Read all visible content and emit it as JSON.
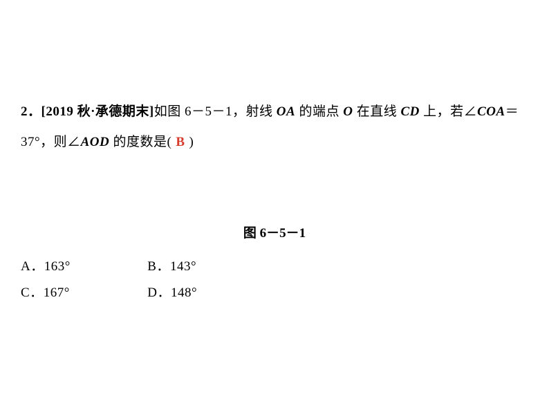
{
  "question": {
    "number": "2．",
    "source_open": "[2019 秋·承德期末]",
    "text_part1": "如图 6－5－1，射线 ",
    "var1": "OA",
    "text_part2": " 的端点 ",
    "var2": "O",
    "text_part3": " 在直线 ",
    "var3": "CD",
    "text_part4": " 上，若∠",
    "var4": "COA",
    "text_part5": "＝37°，则∠",
    "var5": "AOD",
    "text_part6": " 的度数是(",
    "answer": "B",
    "text_part7": ")"
  },
  "figure_label": "图 6－5－1",
  "options": {
    "a": {
      "label": "A．",
      "value": "163°"
    },
    "b": {
      "label": "B．",
      "value": "143°"
    },
    "c": {
      "label": "C．",
      "value": "167°"
    },
    "d": {
      "label": "D．",
      "value": "148°"
    }
  },
  "colors": {
    "text": "#000000",
    "answer": "#d83a2b",
    "background": "#ffffff"
  },
  "font": {
    "body_size_pt": 14,
    "family": "SimSun"
  }
}
